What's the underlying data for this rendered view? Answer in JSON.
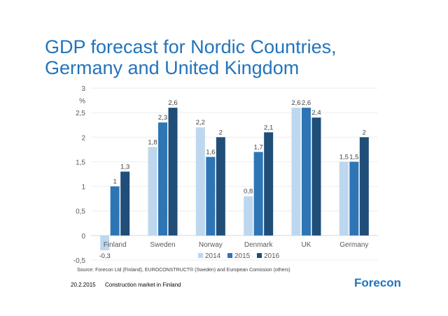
{
  "slide": {
    "title": "GDP forecast for Nordic Countries, Germany and United Kingdom",
    "source": "Source: Forecon Ltd (Finland),  EUROCONSTRUCT® (Sweden) and European Comission (others)",
    "date": "20.2.2015",
    "footer": "Construction market in Finland",
    "logo": "Forecon"
  },
  "chart_data": {
    "type": "bar",
    "title": "",
    "ylabel": "%",
    "xlabel": "",
    "ylim": [
      -0.5,
      3
    ],
    "yticks": [
      "-0,5",
      "0",
      "0,5",
      "1",
      "1,5",
      "2",
      "2,5",
      "3"
    ],
    "categories": [
      "Finland",
      "Sweden",
      "Norway",
      "Denmark",
      "UK",
      "Germany"
    ],
    "series": [
      {
        "name": "2014",
        "color": "#bdd7ee",
        "values": [
          -0.3,
          1.8,
          2.2,
          0.8,
          2.6,
          1.5
        ]
      },
      {
        "name": "2015",
        "color": "#2e75b6",
        "values": [
          1,
          2.3,
          1.6,
          1.7,
          2.6,
          1.5
        ]
      },
      {
        "name": "2016",
        "color": "#1f4e79",
        "values": [
          1.3,
          2.6,
          2,
          2.1,
          2.4,
          2
        ]
      }
    ],
    "grid": true,
    "legend": "bottom"
  }
}
